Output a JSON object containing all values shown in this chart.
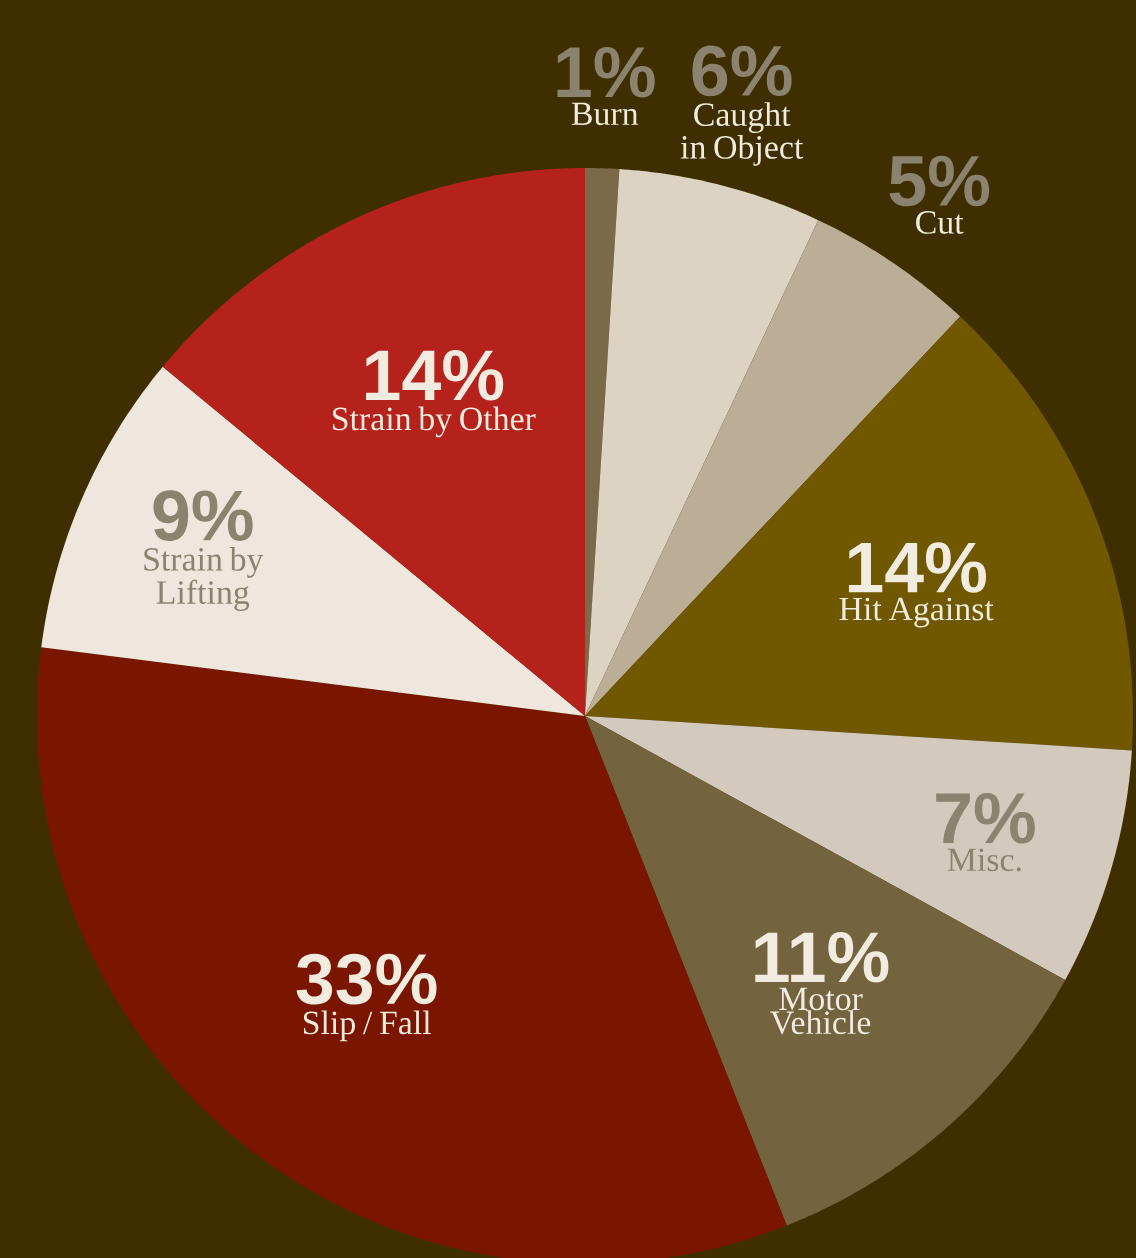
{
  "chart_data": {
    "type": "pie",
    "categories": [
      "Burn",
      "Caught in Object",
      "Cut",
      "Hit Against",
      "Misc.",
      "Motor Vehicle",
      "Slip / Fall",
      "Strain by Lifting",
      "Strain by Other"
    ],
    "values": [
      1,
      6,
      5,
      14,
      7,
      11,
      33,
      9,
      14
    ],
    "value_labels": [
      "1%",
      "6%",
      "5%",
      "14%",
      "7%",
      "11%",
      "33%",
      "9%",
      "14%"
    ],
    "colors": [
      "#7a6a4a",
      "#dcd3c3",
      "#bbad96",
      "#6f5800",
      "#d3c9bc",
      "#74633f",
      "#7a1500",
      "#efe7de",
      "#b5221b"
    ]
  }
}
